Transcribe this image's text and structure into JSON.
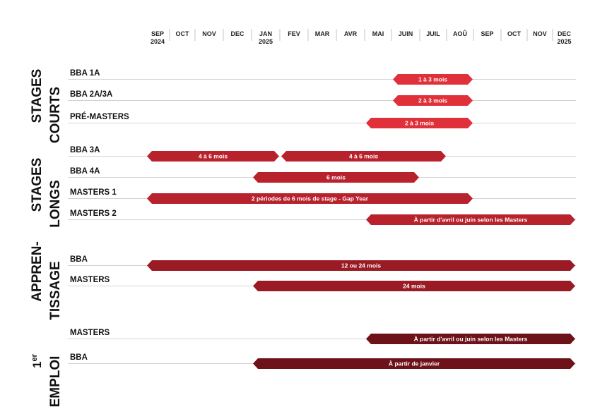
{
  "chart_data": {
    "type": "gantt",
    "months": [
      {
        "label": "SEP",
        "year": "2024"
      },
      {
        "label": "OCT",
        "year": ""
      },
      {
        "label": "NOV",
        "year": ""
      },
      {
        "label": "DEC",
        "year": ""
      },
      {
        "label": "JAN",
        "year": "2025"
      },
      {
        "label": "FEV",
        "year": ""
      },
      {
        "label": "MAR",
        "year": ""
      },
      {
        "label": "AVR",
        "year": ""
      },
      {
        "label": "MAI",
        "year": ""
      },
      {
        "label": "JUIN",
        "year": ""
      },
      {
        "label": "JUIL",
        "year": ""
      },
      {
        "label": "AOÛ",
        "year": ""
      },
      {
        "label": "SEP",
        "year": ""
      },
      {
        "label": "OCT",
        "year": ""
      },
      {
        "label": "NOV",
        "year": ""
      },
      {
        "label": "DEC",
        "year": "2025"
      }
    ],
    "groups": [
      {
        "title": [
          "STAGES",
          "COURTS"
        ],
        "color": "#e0303a",
        "rows": [
          {
            "label": "BBA 1A",
            "bars": [
              {
                "start": 9,
                "end": 12,
                "text": "1 à 3 mois"
              }
            ]
          },
          {
            "label": "BBA 2A/3A",
            "bars": [
              {
                "start": 9,
                "end": 12,
                "text": "2 à 3 mois"
              }
            ]
          },
          {
            "label": "PRÉ-MASTERS",
            "bars": [
              {
                "start": 8,
                "end": 12,
                "text": "2 à 3 mois"
              }
            ]
          }
        ]
      },
      {
        "title": [
          "STAGES",
          "LONGS"
        ],
        "color": "#b8222c",
        "rows": [
          {
            "label": "BBA 3A",
            "bars": [
              {
                "start": 0,
                "end": 5,
                "text": "4 à 6 mois"
              },
              {
                "start": 5,
                "end": 11,
                "text": "4 à 6 mois"
              }
            ]
          },
          {
            "label": "BBA 4A",
            "bars": [
              {
                "start": 4,
                "end": 10,
                "text": "6 mois"
              }
            ]
          },
          {
            "label": "MASTERS 1",
            "bars": [
              {
                "start": 0,
                "end": 12,
                "text": "2 périodes de 6 mois de stage - Gap Year"
              }
            ]
          },
          {
            "label": "MASTERS 2",
            "bars": [
              {
                "start": 8,
                "end": 16,
                "text": "À partir d'avril ou juin selon les Masters"
              }
            ]
          }
        ]
      },
      {
        "title": [
          "APPREN-",
          "TISSAGE"
        ],
        "color": "#9a1b24",
        "rows": [
          {
            "label": "BBA",
            "bars": [
              {
                "start": 0,
                "end": 16,
                "text": "12 ou 24 mois"
              }
            ]
          },
          {
            "label": "MASTERS",
            "bars": [
              {
                "start": 4,
                "end": 16,
                "text": "24 mois"
              }
            ]
          }
        ]
      },
      {
        "title": [
          "1er",
          "EMPLOI"
        ],
        "color": "#6e1219",
        "rows": [
          {
            "label": "MASTERS",
            "bars": [
              {
                "start": 8,
                "end": 16,
                "text": "À partir d'avril ou juin selon les Masters"
              }
            ]
          },
          {
            "label": "BBA",
            "bars": [
              {
                "start": 4,
                "end": 16,
                "text": "À partir de janvier"
              }
            ]
          }
        ]
      }
    ]
  }
}
